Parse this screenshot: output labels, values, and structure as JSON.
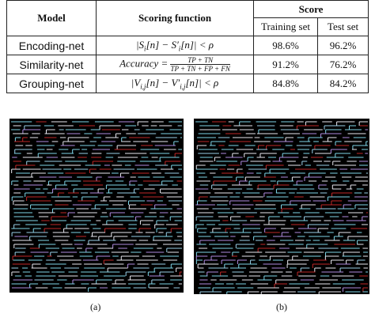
{
  "table": {
    "header": {
      "model": "Model",
      "scoring": "Scoring function",
      "score": "Score",
      "training": "Training set",
      "test": "Test set"
    },
    "rows": [
      {
        "model": "Encoding-net",
        "scoring": [
          "|S",
          "i",
          "[n] − S′",
          "i",
          "[n]| < ρ"
        ],
        "training": "98.6%",
        "test": "96.2%"
      },
      {
        "model": "Similarity-net",
        "scoring": [
          "Accuracy =",
          "TP + TN",
          "TP + TN + FP + FN"
        ],
        "training": "91.2%",
        "test": "76.2%"
      },
      {
        "model": "Grouping-net",
        "scoring": [
          "|V",
          "i,j",
          "[n] − V′",
          "i,j",
          "[n]| < ρ"
        ],
        "training": "84.8%",
        "test": "84.2%"
      }
    ]
  },
  "figures": [
    {
      "label": "(a)"
    },
    {
      "label": "(b)"
    }
  ]
}
